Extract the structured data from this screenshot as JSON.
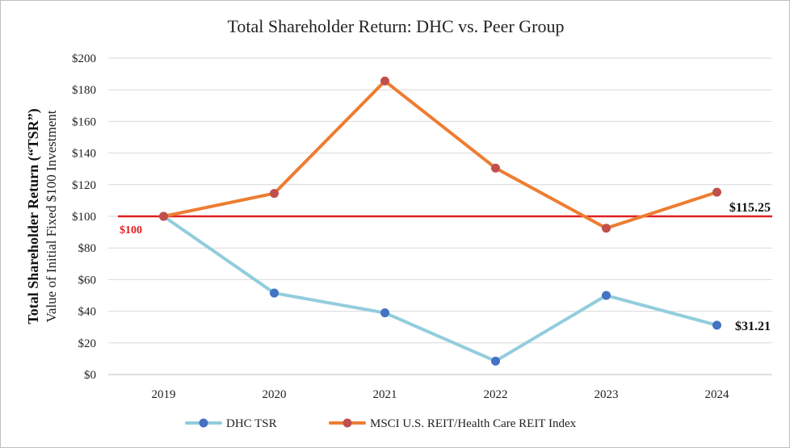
{
  "chart_data": {
    "type": "line",
    "title": "Total Shareholder Return: DHC vs. Peer Group",
    "ylabel_bold": "Total Shareholder Return (“TSR”)",
    "ylabel_regular": "Value of Initial Fixed $100 Investment",
    "xlabel": "",
    "categories": [
      "2019",
      "2020",
      "2021",
      "2022",
      "2023",
      "2024"
    ],
    "ylim": [
      0,
      200
    ],
    "ytick_values": [
      0,
      20,
      40,
      60,
      80,
      100,
      120,
      140,
      160,
      180,
      200
    ],
    "ytick_labels": [
      "$0",
      "$20",
      "$40",
      "$60",
      "$80",
      "$100",
      "$120",
      "$140",
      "$160",
      "$180",
      "$200"
    ],
    "grid": true,
    "legend_position": "bottom",
    "series": [
      {
        "name": "DHC TSR",
        "values": [
          100,
          51.5,
          39,
          8.5,
          50,
          31.21
        ],
        "color": "#92cddc",
        "marker_color": "#4472c4",
        "end_label": "$31.21"
      },
      {
        "name": "MSCI U.S. REIT/Health Care REIT Index",
        "values": [
          100,
          114.5,
          185.5,
          130.5,
          92.5,
          115.25
        ],
        "color": "#ed7d31",
        "marker_color": "#c0504d",
        "end_label": "$115.25"
      }
    ],
    "reference_line": {
      "value": 100,
      "label": "$100",
      "color": "#e02020"
    }
  }
}
